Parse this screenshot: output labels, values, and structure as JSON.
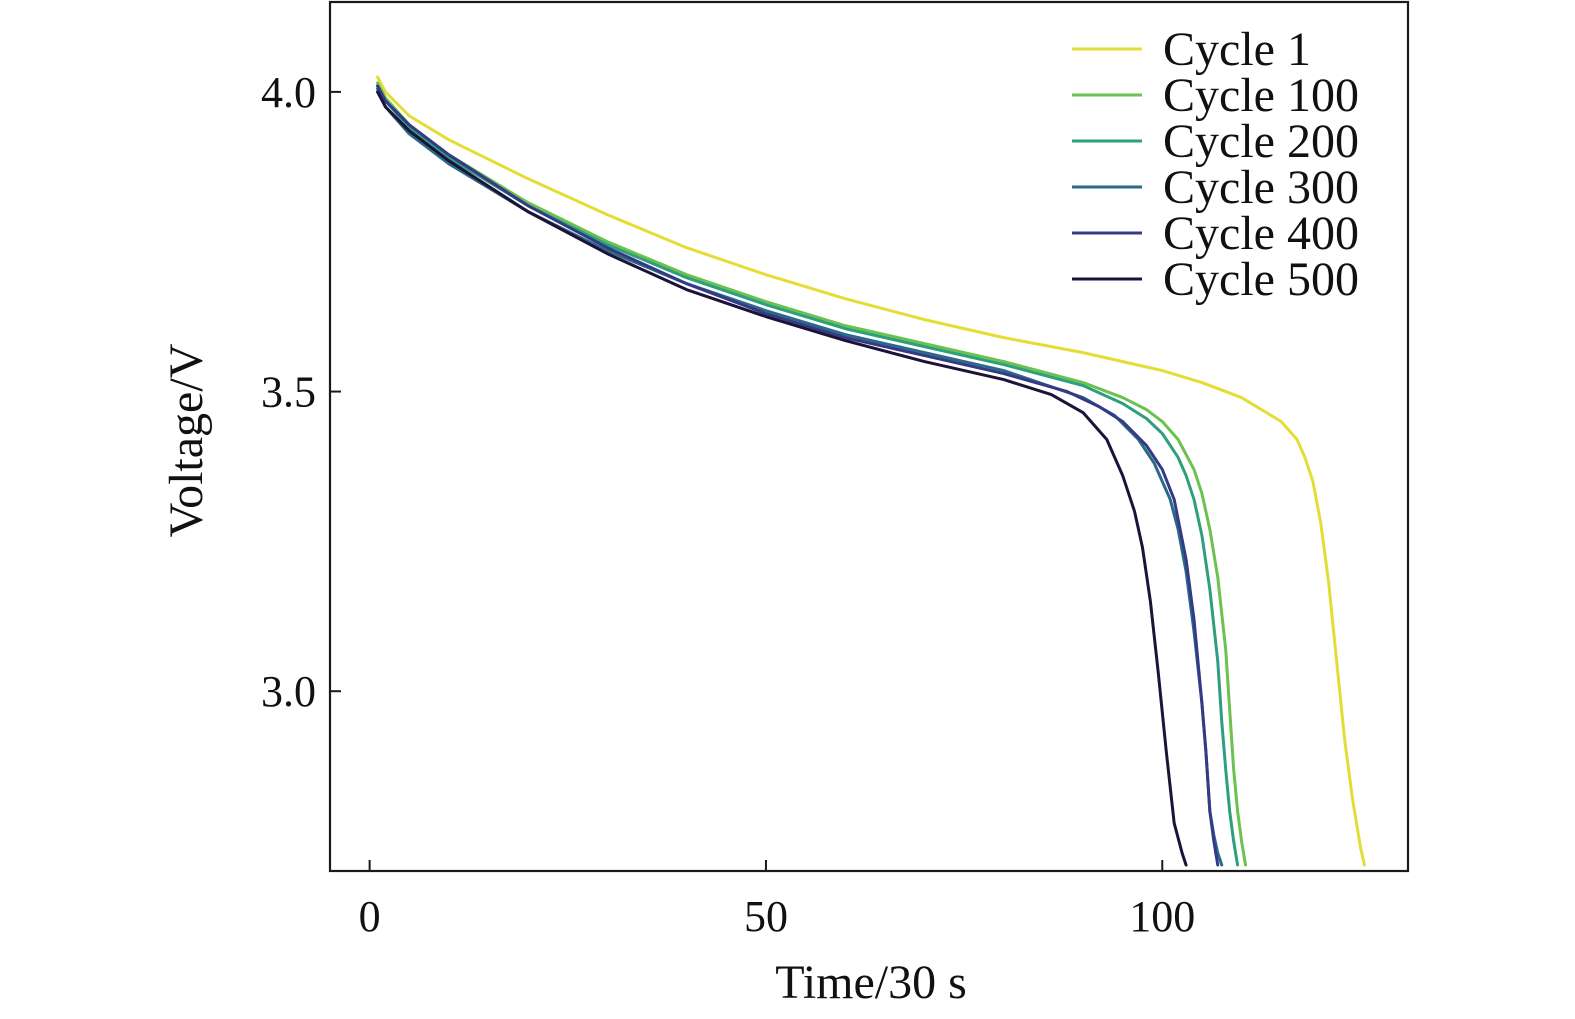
{
  "chart_data": {
    "type": "line",
    "xlabel": "Time/30 s",
    "ylabel": "Voltage/V",
    "xlim": [
      -5,
      131
    ],
    "ylim": [
      2.7,
      4.15
    ],
    "xticks": [
      0,
      50,
      100
    ],
    "yticks": [
      3.0,
      3.5,
      4.0
    ],
    "xtick_labels": [
      "0",
      "50",
      "100"
    ],
    "ytick_labels": [
      "3.0",
      "3.5",
      "4.0"
    ],
    "grid": false,
    "legend_position": "top-right",
    "series": [
      {
        "name": "Cycle 1",
        "color": "#e3dd35",
        "x": [
          1,
          2,
          5,
          10,
          20,
          30,
          40,
          50,
          60,
          70,
          80,
          90,
          100,
          105,
          110,
          115,
          117,
          118,
          119,
          120,
          121,
          122,
          123,
          124,
          124.5,
          125,
          125.5
        ],
        "y": [
          4.025,
          4.0,
          3.96,
          3.92,
          3.855,
          3.795,
          3.74,
          3.695,
          3.655,
          3.62,
          3.59,
          3.565,
          3.535,
          3.515,
          3.49,
          3.45,
          3.42,
          3.39,
          3.35,
          3.28,
          3.18,
          3.05,
          2.92,
          2.82,
          2.78,
          2.74,
          2.71
        ]
      },
      {
        "name": "Cycle 100",
        "color": "#6bc24f",
        "x": [
          1,
          2,
          5,
          10,
          20,
          30,
          40,
          50,
          60,
          70,
          80,
          90,
          95,
          98,
          100,
          102,
          104,
          105,
          106,
          107,
          108,
          108.5,
          109,
          109.5,
          110,
          110.5
        ],
        "y": [
          4.015,
          3.99,
          3.945,
          3.895,
          3.815,
          3.75,
          3.695,
          3.65,
          3.61,
          3.58,
          3.55,
          3.515,
          3.49,
          3.47,
          3.45,
          3.42,
          3.37,
          3.33,
          3.27,
          3.19,
          3.07,
          2.97,
          2.87,
          2.8,
          2.75,
          2.71
        ]
      },
      {
        "name": "Cycle 200",
        "color": "#2e9f7e",
        "x": [
          1,
          2,
          5,
          10,
          20,
          30,
          40,
          50,
          60,
          70,
          80,
          90,
          95,
          98,
          100,
          102,
          103,
          104,
          105,
          106,
          107,
          107.5,
          108,
          108.5,
          109,
          109.5
        ],
        "y": [
          4.01,
          3.985,
          3.94,
          3.89,
          3.81,
          3.745,
          3.69,
          3.645,
          3.605,
          3.575,
          3.545,
          3.51,
          3.48,
          3.455,
          3.43,
          3.39,
          3.36,
          3.32,
          3.26,
          3.17,
          3.05,
          2.95,
          2.87,
          2.8,
          2.75,
          2.71
        ]
      },
      {
        "name": "Cycle 300",
        "color": "#2a6a86",
        "x": [
          1,
          2,
          5,
          10,
          20,
          30,
          40,
          50,
          60,
          70,
          80,
          90,
          94,
          97,
          99,
          101,
          102,
          103,
          104,
          105,
          105.5,
          106,
          106.5,
          107,
          107.5
        ],
        "y": [
          4.005,
          3.975,
          3.93,
          3.88,
          3.8,
          3.735,
          3.68,
          3.635,
          3.595,
          3.565,
          3.535,
          3.49,
          3.46,
          3.42,
          3.38,
          3.32,
          3.27,
          3.2,
          3.1,
          2.98,
          2.9,
          2.8,
          2.76,
          2.73,
          2.71
        ]
      },
      {
        "name": "Cycle 400",
        "color": "#353a87",
        "x": [
          1,
          2,
          5,
          10,
          20,
          30,
          40,
          50,
          60,
          70,
          80,
          88,
          92,
          95,
          98,
          100,
          101.5,
          103,
          104,
          105,
          105.5,
          106,
          106.5,
          107
        ],
        "y": [
          4.01,
          3.985,
          3.945,
          3.895,
          3.81,
          3.74,
          3.68,
          3.63,
          3.59,
          3.56,
          3.53,
          3.5,
          3.475,
          3.45,
          3.41,
          3.37,
          3.32,
          3.22,
          3.12,
          2.98,
          2.9,
          2.8,
          2.75,
          2.71
        ]
      },
      {
        "name": "Cycle 500",
        "color": "#1d1238",
        "x": [
          1,
          2,
          5,
          10,
          20,
          30,
          40,
          50,
          60,
          70,
          80,
          86,
          90,
          93,
          95,
          96.5,
          97.5,
          98.5,
          99.5,
          100.5,
          101.5,
          102.5,
          103
        ],
        "y": [
          4.0,
          3.975,
          3.935,
          3.885,
          3.8,
          3.73,
          3.67,
          3.625,
          3.585,
          3.55,
          3.52,
          3.495,
          3.465,
          3.42,
          3.36,
          3.3,
          3.24,
          3.15,
          3.03,
          2.9,
          2.78,
          2.73,
          2.71
        ]
      }
    ]
  }
}
